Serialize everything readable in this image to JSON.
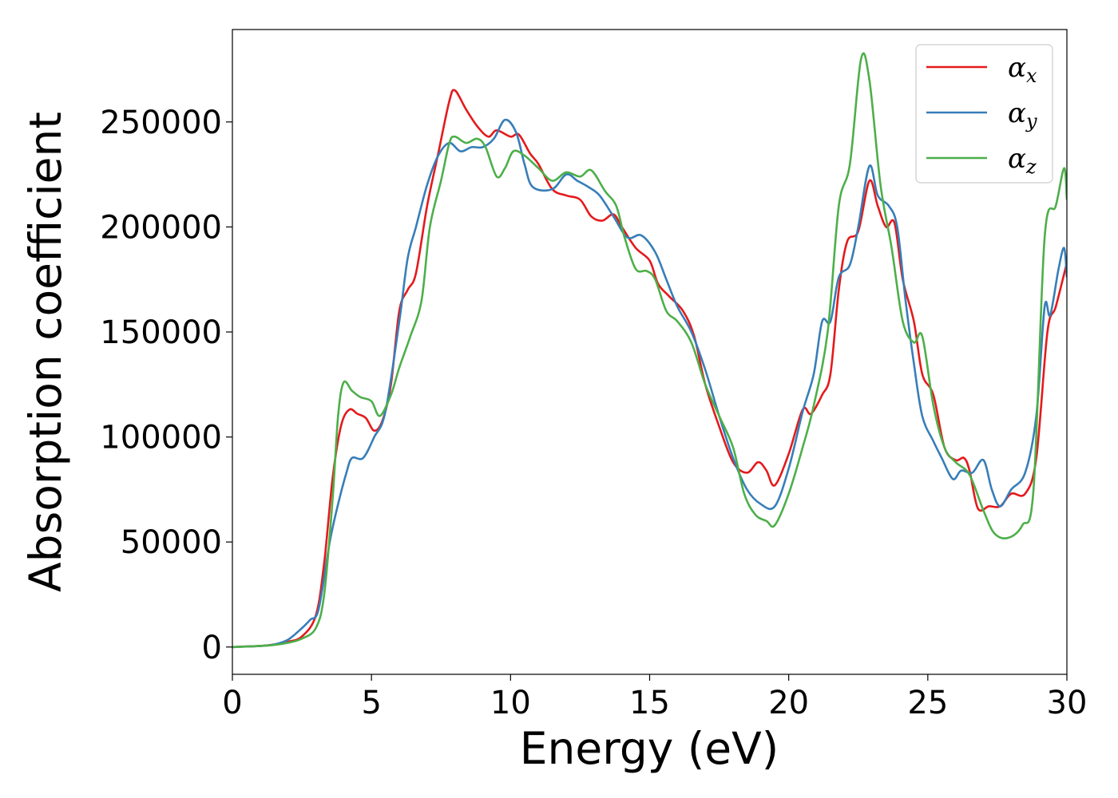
{
  "chart_data": {
    "type": "line",
    "xlabel": "Energy (eV)",
    "ylabel": "Absorption coefficient",
    "xlim": [
      0,
      30
    ],
    "ylim": [
      -13000,
      294000
    ],
    "xticks": [
      0,
      5,
      10,
      15,
      20,
      25,
      30
    ],
    "xtick_labels": [
      "0",
      "5",
      "10",
      "15",
      "20",
      "25",
      "30"
    ],
    "yticks": [
      0,
      50000,
      100000,
      150000,
      200000,
      250000
    ],
    "ytick_labels": [
      "0",
      "50000",
      "100000",
      "150000",
      "200000",
      "250000"
    ],
    "grid": false,
    "legend_position": "top-right",
    "series": [
      {
        "name": "α",
        "subscript": "x",
        "color": "#e41a1c",
        "points": [
          [
            0,
            0
          ],
          [
            1,
            500
          ],
          [
            1.5,
            1200
          ],
          [
            2,
            2500
          ],
          [
            2.5,
            5000
          ],
          [
            3,
            15000
          ],
          [
            3.3,
            40000
          ],
          [
            3.6,
            80000
          ],
          [
            3.9,
            105000
          ],
          [
            4.2,
            113000
          ],
          [
            4.5,
            111000
          ],
          [
            4.8,
            109000
          ],
          [
            5.1,
            103000
          ],
          [
            5.4,
            108000
          ],
          [
            5.7,
            125000
          ],
          [
            6,
            160000
          ],
          [
            6.3,
            170000
          ],
          [
            6.6,
            178000
          ],
          [
            7,
            210000
          ],
          [
            7.4,
            235000
          ],
          [
            7.8,
            260000
          ],
          [
            8,
            265000
          ],
          [
            8.4,
            256000
          ],
          [
            8.8,
            248000
          ],
          [
            9.2,
            243000
          ],
          [
            9.5,
            246000
          ],
          [
            10,
            243000
          ],
          [
            10.3,
            244000
          ],
          [
            10.7,
            235000
          ],
          [
            11,
            230000
          ],
          [
            11.5,
            218000
          ],
          [
            12,
            215000
          ],
          [
            12.5,
            213000
          ],
          [
            12.9,
            205000
          ],
          [
            13.3,
            203000
          ],
          [
            13.7,
            206000
          ],
          [
            14,
            200000
          ],
          [
            14.5,
            190000
          ],
          [
            15,
            184000
          ],
          [
            15.3,
            173000
          ],
          [
            15.7,
            167000
          ],
          [
            16.2,
            160000
          ],
          [
            16.6,
            148000
          ],
          [
            17,
            125000
          ],
          [
            17.5,
            105000
          ],
          [
            18,
            88000
          ],
          [
            18.5,
            83000
          ],
          [
            18.9,
            88000
          ],
          [
            19.2,
            84000
          ],
          [
            19.5,
            77000
          ],
          [
            20,
            92000
          ],
          [
            20.5,
            113000
          ],
          [
            20.8,
            111000
          ],
          [
            21.2,
            120000
          ],
          [
            21.5,
            130000
          ],
          [
            21.8,
            170000
          ],
          [
            22.1,
            193000
          ],
          [
            22.5,
            198000
          ],
          [
            22.9,
            222000
          ],
          [
            23.2,
            210000
          ],
          [
            23.5,
            200000
          ],
          [
            23.8,
            202000
          ],
          [
            24.1,
            175000
          ],
          [
            24.5,
            155000
          ],
          [
            24.8,
            130000
          ],
          [
            25.2,
            120000
          ],
          [
            25.6,
            95000
          ],
          [
            26,
            89000
          ],
          [
            26.3,
            90000
          ],
          [
            26.5,
            84000
          ],
          [
            26.8,
            66000
          ],
          [
            27.2,
            67000
          ],
          [
            27.6,
            67000
          ],
          [
            28,
            73000
          ],
          [
            28.5,
            73000
          ],
          [
            28.9,
            90000
          ],
          [
            29.3,
            150000
          ],
          [
            29.6,
            162000
          ],
          [
            30,
            183000
          ]
        ]
      },
      {
        "name": "α",
        "subscript": "y",
        "color": "#377eb8",
        "points": [
          [
            0,
            0
          ],
          [
            1,
            500
          ],
          [
            1.5,
            1200
          ],
          [
            2,
            3500
          ],
          [
            2.5,
            9000
          ],
          [
            2.8,
            13000
          ],
          [
            3.1,
            18000
          ],
          [
            3.5,
            50000
          ],
          [
            3.8,
            68000
          ],
          [
            4.1,
            83000
          ],
          [
            4.3,
            90000
          ],
          [
            4.7,
            90000
          ],
          [
            5.1,
            100000
          ],
          [
            5.5,
            112000
          ],
          [
            6,
            155000
          ],
          [
            6.3,
            185000
          ],
          [
            6.6,
            200000
          ],
          [
            7,
            220000
          ],
          [
            7.4,
            234000
          ],
          [
            7.8,
            240000
          ],
          [
            8.2,
            236000
          ],
          [
            8.6,
            238000
          ],
          [
            9,
            238000
          ],
          [
            9.4,
            242000
          ],
          [
            9.8,
            251000
          ],
          [
            10.2,
            245000
          ],
          [
            10.5,
            230000
          ],
          [
            10.8,
            219000
          ],
          [
            11.5,
            218000
          ],
          [
            12,
            225000
          ],
          [
            12.4,
            222000
          ],
          [
            12.8,
            219000
          ],
          [
            13.2,
            215000
          ],
          [
            13.7,
            205000
          ],
          [
            14.2,
            195000
          ],
          [
            14.7,
            196000
          ],
          [
            15.2,
            188000
          ],
          [
            15.6,
            175000
          ],
          [
            16,
            162000
          ],
          [
            16.5,
            150000
          ],
          [
            17,
            132000
          ],
          [
            17.5,
            110000
          ],
          [
            18,
            90000
          ],
          [
            18.5,
            75000
          ],
          [
            19,
            68000
          ],
          [
            19.5,
            67000
          ],
          [
            20,
            85000
          ],
          [
            20.5,
            112000
          ],
          [
            20.9,
            130000
          ],
          [
            21.2,
            155000
          ],
          [
            21.5,
            155000
          ],
          [
            21.8,
            176000
          ],
          [
            22.2,
            182000
          ],
          [
            22.5,
            200000
          ],
          [
            22.9,
            229000
          ],
          [
            23.2,
            215000
          ],
          [
            23.6,
            210000
          ],
          [
            23.9,
            200000
          ],
          [
            24.2,
            165000
          ],
          [
            24.5,
            135000
          ],
          [
            24.8,
            110000
          ],
          [
            25.2,
            98000
          ],
          [
            25.5,
            90000
          ],
          [
            25.9,
            80000
          ],
          [
            26.2,
            84000
          ],
          [
            26.6,
            83000
          ],
          [
            27,
            89000
          ],
          [
            27.3,
            75000
          ],
          [
            27.6,
            67000
          ],
          [
            28,
            75000
          ],
          [
            28.5,
            83000
          ],
          [
            28.9,
            110000
          ],
          [
            29.2,
            162000
          ],
          [
            29.4,
            158000
          ],
          [
            29.7,
            180000
          ],
          [
            29.9,
            190000
          ],
          [
            30,
            176000
          ]
        ]
      },
      {
        "name": "α",
        "subscript": "z",
        "color": "#4daf4a",
        "points": [
          [
            0,
            0
          ],
          [
            1,
            500
          ],
          [
            1.5,
            1000
          ],
          [
            2,
            2000
          ],
          [
            2.5,
            4000
          ],
          [
            3,
            9000
          ],
          [
            3.3,
            25000
          ],
          [
            3.6,
            70000
          ],
          [
            3.8,
            110000
          ],
          [
            4,
            126000
          ],
          [
            4.3,
            122000
          ],
          [
            4.6,
            119000
          ],
          [
            5,
            117000
          ],
          [
            5.3,
            110000
          ],
          [
            5.7,
            120000
          ],
          [
            6,
            133000
          ],
          [
            6.4,
            148000
          ],
          [
            6.8,
            165000
          ],
          [
            7.1,
            200000
          ],
          [
            7.5,
            222000
          ],
          [
            7.8,
            240000
          ],
          [
            8,
            243000
          ],
          [
            8.4,
            240000
          ],
          [
            8.8,
            242000
          ],
          [
            9.1,
            238000
          ],
          [
            9.5,
            224000
          ],
          [
            9.8,
            228000
          ],
          [
            10.1,
            236000
          ],
          [
            10.5,
            234000
          ],
          [
            11,
            228000
          ],
          [
            11.5,
            222000
          ],
          [
            12,
            226000
          ],
          [
            12.5,
            224000
          ],
          [
            12.9,
            227000
          ],
          [
            13.4,
            217000
          ],
          [
            13.8,
            210000
          ],
          [
            14.1,
            195000
          ],
          [
            14.5,
            180000
          ],
          [
            14.9,
            179000
          ],
          [
            15.2,
            175000
          ],
          [
            15.6,
            160000
          ],
          [
            16,
            155000
          ],
          [
            16.5,
            145000
          ],
          [
            17,
            125000
          ],
          [
            17.5,
            110000
          ],
          [
            18,
            95000
          ],
          [
            18.4,
            73000
          ],
          [
            18.8,
            63000
          ],
          [
            19.2,
            60000
          ],
          [
            19.5,
            58000
          ],
          [
            20,
            73000
          ],
          [
            20.5,
            95000
          ],
          [
            20.9,
            115000
          ],
          [
            21.4,
            150000
          ],
          [
            21.8,
            210000
          ],
          [
            22.2,
            230000
          ],
          [
            22.6,
            280000
          ],
          [
            22.9,
            270000
          ],
          [
            23.3,
            220000
          ],
          [
            23.7,
            190000
          ],
          [
            24.1,
            155000
          ],
          [
            24.5,
            145000
          ],
          [
            24.8,
            148000
          ],
          [
            25.2,
            115000
          ],
          [
            25.6,
            95000
          ],
          [
            26,
            88000
          ],
          [
            26.5,
            82000
          ],
          [
            27,
            65000
          ],
          [
            27.4,
            54000
          ],
          [
            27.9,
            52000
          ],
          [
            28.4,
            58000
          ],
          [
            28.8,
            75000
          ],
          [
            29.2,
            195000
          ],
          [
            29.6,
            210000
          ],
          [
            29.9,
            228000
          ],
          [
            30,
            213000
          ]
        ]
      }
    ]
  }
}
